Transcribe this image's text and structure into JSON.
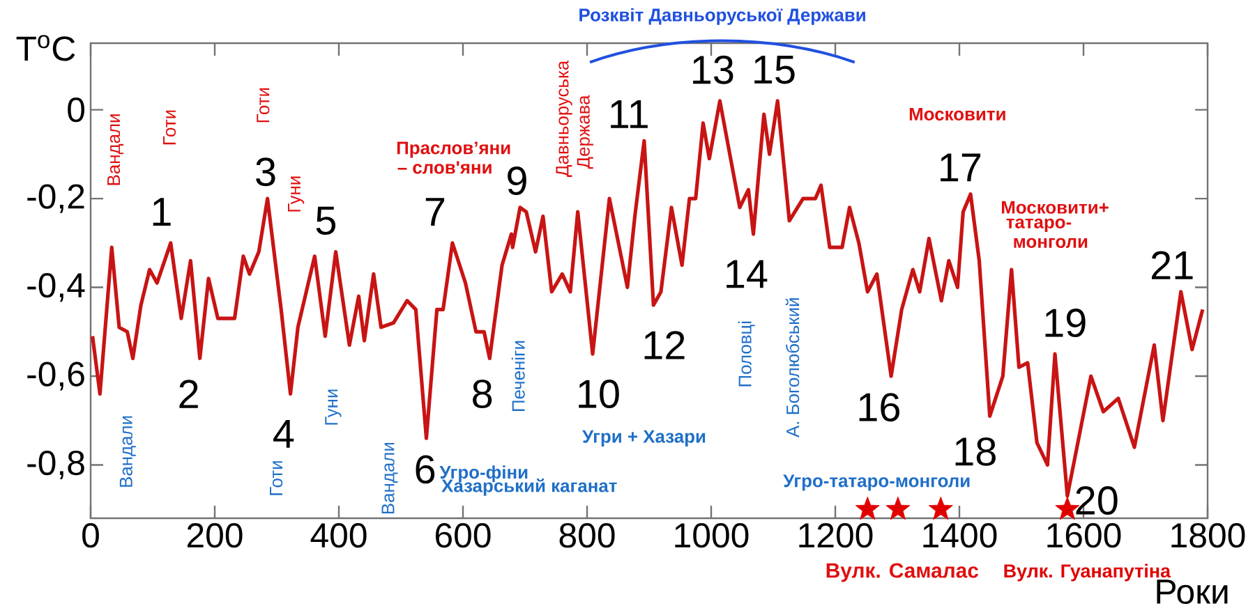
{
  "chart_data": {
    "type": "line",
    "xlabel": "Роки",
    "ylabel": "T$^{o}$C",
    "xlim": [
      0,
      1800
    ],
    "ylim": [
      -0.92,
      0.15
    ],
    "xticks": [
      0,
      200,
      400,
      600,
      800,
      1000,
      1200,
      1400,
      1600,
      1800
    ],
    "yticks": [
      {
        "value": -0.8,
        "label": "-0,8"
      },
      {
        "value": -0.6,
        "label": "-0,6"
      },
      {
        "value": -0.4,
        "label": "-0,4"
      },
      {
        "value": -0.2,
        "label": "-0,2"
      },
      0
    ],
    "grid": false,
    "series": [
      {
        "color": "#c81414",
        "x": [
          3,
          15,
          34,
          46,
          59,
          68,
          81,
          95,
          107,
          129,
          146,
          161,
          176,
          190,
          205,
          232,
          246,
          256,
          271,
          285,
          307,
          322,
          334,
          361,
          378,
          395,
          417,
          432,
          441,
          456,
          468,
          488,
          510,
          524,
          541,
          558,
          568,
          583,
          604,
          621,
          634,
          643,
          663,
          678,
          680,
          692,
          702,
          717,
          729,
          743,
          760,
          773,
          785,
          809,
          836,
          865,
          877,
          892,
          907,
          919,
          936,
          953,
          965,
          975,
          987,
          997,
          1014,
          1046,
          1060,
          1068,
          1085,
          1094,
          1107,
          1126,
          1148,
          1168,
          1177,
          1191,
          1211,
          1223,
          1238,
          1252,
          1267,
          1290,
          1307,
          1325,
          1336,
          1351,
          1371,
          1383,
          1397,
          1406,
          1418,
          1432,
          1449,
          1470,
          1484,
          1496,
          1510,
          1525,
          1542,
          1554,
          1574,
          1612,
          1632,
          1656,
          1682,
          1714,
          1728,
          1757,
          1775,
          1792
        ],
        "values": [
          -0.51,
          -0.64,
          -0.31,
          -0.49,
          -0.5,
          -0.56,
          -0.44,
          -0.36,
          -0.39,
          -0.3,
          -0.47,
          -0.34,
          -0.56,
          -0.38,
          -0.47,
          -0.47,
          -0.33,
          -0.37,
          -0.32,
          -0.2,
          -0.45,
          -0.64,
          -0.49,
          -0.33,
          -0.51,
          -0.32,
          -0.53,
          -0.42,
          -0.52,
          -0.37,
          -0.49,
          -0.48,
          -0.43,
          -0.45,
          -0.74,
          -0.45,
          -0.45,
          -0.3,
          -0.39,
          -0.5,
          -0.5,
          -0.56,
          -0.35,
          -0.28,
          -0.31,
          -0.22,
          -0.23,
          -0.32,
          -0.24,
          -0.41,
          -0.37,
          -0.41,
          -0.23,
          -0.55,
          -0.2,
          -0.4,
          -0.24,
          -0.07,
          -0.44,
          -0.41,
          -0.22,
          -0.35,
          -0.2,
          -0.2,
          -0.03,
          -0.11,
          0.02,
          -0.22,
          -0.18,
          -0.28,
          -0.01,
          -0.1,
          0.02,
          -0.25,
          -0.2,
          -0.2,
          -0.17,
          -0.31,
          -0.31,
          -0.22,
          -0.3,
          -0.41,
          -0.37,
          -0.6,
          -0.45,
          -0.36,
          -0.41,
          -0.29,
          -0.43,
          -0.34,
          -0.4,
          -0.23,
          -0.19,
          -0.34,
          -0.69,
          -0.6,
          -0.36,
          -0.58,
          -0.57,
          -0.75,
          -0.8,
          -0.55,
          -0.87,
          -0.6,
          -0.68,
          -0.65,
          -0.76,
          -0.53,
          -0.7,
          -0.41,
          -0.54,
          -0.45
        ]
      },
      {
        "type": "scatter",
        "name": "Вулк. Самалас",
        "color": "#e00000",
        "marker": "star",
        "x": [
          1252,
          1301,
          1370
        ],
        "values": [
          -0.9,
          -0.9,
          -0.9
        ]
      },
      {
        "type": "scatter",
        "name": "Вулк. Гуанапутіна",
        "color": "#e00000",
        "marker": "star",
        "x": [
          1574
        ],
        "values": [
          -0.9
        ]
      }
    ],
    "annotations": [
      "1",
      "2",
      "3",
      "4",
      "5",
      "6",
      "7",
      "8",
      "9",
      "10",
      "11",
      "12",
      "13",
      "14",
      "15",
      "16",
      "17",
      "18",
      "19",
      "20",
      "21",
      "Вандали",
      "Готи",
      "Готи",
      "Гуни",
      "Праслов’яни",
      "– слов'яни",
      "Давньоруська",
      "Держава",
      "Московити",
      "Московити+",
      "татаро-",
      "монголи",
      "Вандали",
      "Готи",
      "Гуни",
      "Вандали",
      "Угро-фіни",
      "Хазарський каганат",
      "Печеніги",
      "Угри + Хазари",
      "Половці",
      "А. Боголюбський",
      "Угро-татаро-монголи",
      "Розквіт Давньоруської Держави"
    ]
  }
}
